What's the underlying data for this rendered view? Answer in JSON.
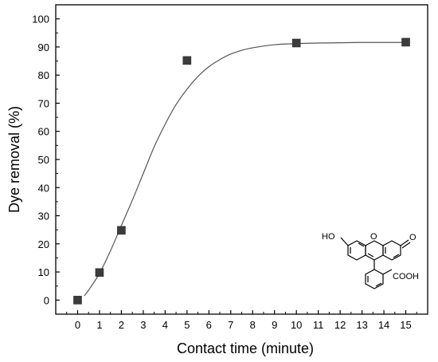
{
  "chart_data": {
    "type": "scatter",
    "xlabel": "Contact time (minute)",
    "ylabel": "Dye removal (%)",
    "xlim": [
      -1,
      16
    ],
    "ylim": [
      -5,
      105
    ],
    "xticks": [
      0,
      1,
      2,
      3,
      4,
      5,
      6,
      7,
      8,
      9,
      10,
      11,
      12,
      13,
      14,
      15
    ],
    "yticks": [
      0,
      10,
      20,
      30,
      40,
      50,
      60,
      70,
      80,
      90,
      100
    ],
    "grid": false,
    "legend": "none",
    "series": [
      {
        "type": "scatter",
        "marker": "square",
        "x": [
          0,
          1,
          2,
          5,
          10,
          15
        ],
        "y": [
          0,
          9.8,
          24.8,
          85.2,
          91.4,
          91.7
        ]
      },
      {
        "type": "line",
        "x": [
          0.3,
          0.5,
          1,
          1.5,
          2,
          2.5,
          3,
          3.5,
          4,
          4.5,
          5,
          5.5,
          6,
          6.5,
          7,
          7.5,
          8,
          9,
          10,
          11,
          12,
          13,
          14,
          15
        ],
        "y": [
          1.5,
          3.5,
          9.5,
          17.5,
          26.5,
          35.5,
          45,
          54.5,
          62.5,
          69.5,
          75,
          79.5,
          83,
          85.5,
          87.5,
          88.8,
          89.7,
          90.8,
          91.2,
          91.4,
          91.5,
          91.6,
          91.6,
          91.6
        ]
      }
    ],
    "colors": {
      "marker": "#3c3c3c",
      "line": "#555555",
      "axis": "#000000"
    }
  },
  "inset": {
    "structure": "fluorescein",
    "labels": {
      "ho": "HO",
      "o_ring": "O",
      "ketone": "O",
      "acid": "COOH"
    }
  }
}
